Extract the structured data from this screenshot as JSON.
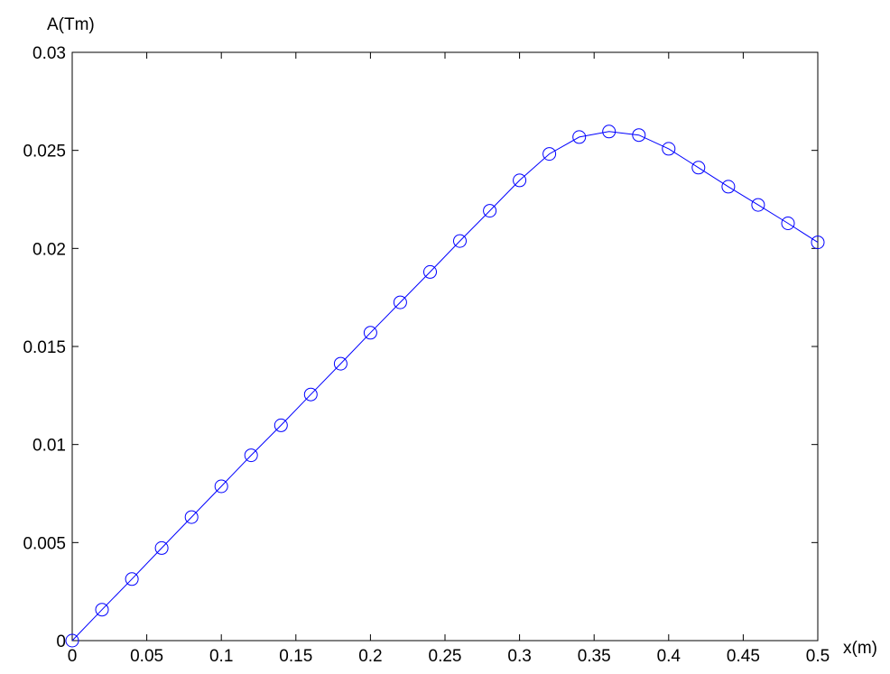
{
  "chart_data": {
    "type": "line",
    "title": "",
    "xlabel": "x(m)",
    "ylabel": "A(Tm)",
    "xlim": [
      0,
      0.5
    ],
    "ylim": [
      0,
      0.03
    ],
    "grid": false,
    "x_ticks": [
      {
        "value": 0,
        "label": "0"
      },
      {
        "value": 0.05,
        "label": "0.05"
      },
      {
        "value": 0.1,
        "label": "0.1"
      },
      {
        "value": 0.15,
        "label": "0.15"
      },
      {
        "value": 0.2,
        "label": "0.2"
      },
      {
        "value": 0.25,
        "label": "0.25"
      },
      {
        "value": 0.3,
        "label": "0.3"
      },
      {
        "value": 0.35,
        "label": "0.35"
      },
      {
        "value": 0.4,
        "label": "0.4"
      },
      {
        "value": 0.45,
        "label": "0.45"
      },
      {
        "value": 0.5,
        "label": "0.5"
      }
    ],
    "y_ticks": [
      {
        "value": 0,
        "label": "0"
      },
      {
        "value": 0.005,
        "label": "0.005"
      },
      {
        "value": 0.01,
        "label": "0.01"
      },
      {
        "value": 0.015,
        "label": "0.015"
      },
      {
        "value": 0.02,
        "label": "0.02"
      },
      {
        "value": 0.025,
        "label": "0.025"
      },
      {
        "value": 0.03,
        "label": "0.03"
      }
    ],
    "series": [
      {
        "color": "#0000ff",
        "marker": "circle-open",
        "x": [
          0,
          0.02,
          0.04,
          0.06,
          0.08,
          0.1,
          0.12,
          0.14,
          0.16,
          0.18,
          0.2,
          0.22,
          0.24,
          0.26,
          0.28,
          0.3,
          0.32,
          0.34,
          0.36,
          0.38,
          0.4,
          0.42,
          0.44,
          0.46,
          0.48,
          0.5
        ],
        "y": [
          0,
          0.00158,
          0.00314,
          0.00472,
          0.0063,
          0.00787,
          0.00945,
          0.01098,
          0.01255,
          0.01412,
          0.0157,
          0.01725,
          0.0188,
          0.02038,
          0.02192,
          0.02347,
          0.02482,
          0.02568,
          0.02596,
          0.02578,
          0.02508,
          0.02412,
          0.02315,
          0.02222,
          0.02128,
          0.02031
        ]
      }
    ]
  }
}
